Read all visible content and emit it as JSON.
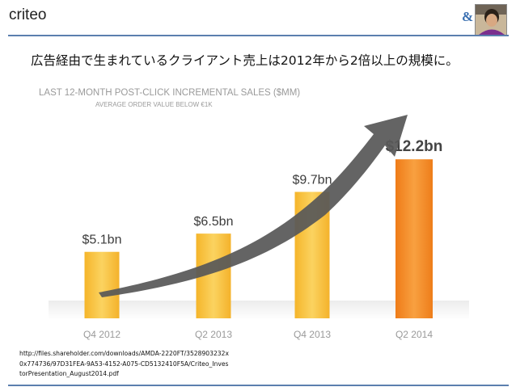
{
  "header": {
    "title": "criteo",
    "logo_mark": "&",
    "colors": {
      "rule": "#5b7fae",
      "logo": "#3a6fb0"
    }
  },
  "headline": "広告経由で生まれているクライアント売上は2012年から2倍以上の規模に。",
  "chart_data": {
    "type": "bar",
    "title": "LAST 12-MONTH POST-CLICK INCREMENTAL SALES ($MM)",
    "subtitle": "AVERAGE ORDER VALUE BELOW €1K",
    "categories": [
      "Q4 2012",
      "Q2 2013",
      "Q4 2013",
      "Q2 2014"
    ],
    "values": [
      5.1,
      6.5,
      9.7,
      12.2
    ],
    "data_labels": [
      "$5.1bn",
      "$6.5bn",
      "$9.7bn",
      "$12.2bn"
    ],
    "units": "bn",
    "ylim": [
      0,
      15.0
    ],
    "xlabel": "",
    "ylabel": "",
    "highlight_index": 3,
    "annotation": "upward trend arrow",
    "colors": {
      "bar": "#f7c640",
      "highlight_bar": "#f2891f",
      "arrow": "#555555",
      "title": "#9a9a9a",
      "tick": "#9a9a9a"
    }
  },
  "source": "http://files.shareholder.com/downloads/AMDA-2220FT/3528903232x0x774736/97D31FEA-9A53-4152-A075-CD5132410F5A/Criteo_InvestorPresentation_August2014.pdf"
}
